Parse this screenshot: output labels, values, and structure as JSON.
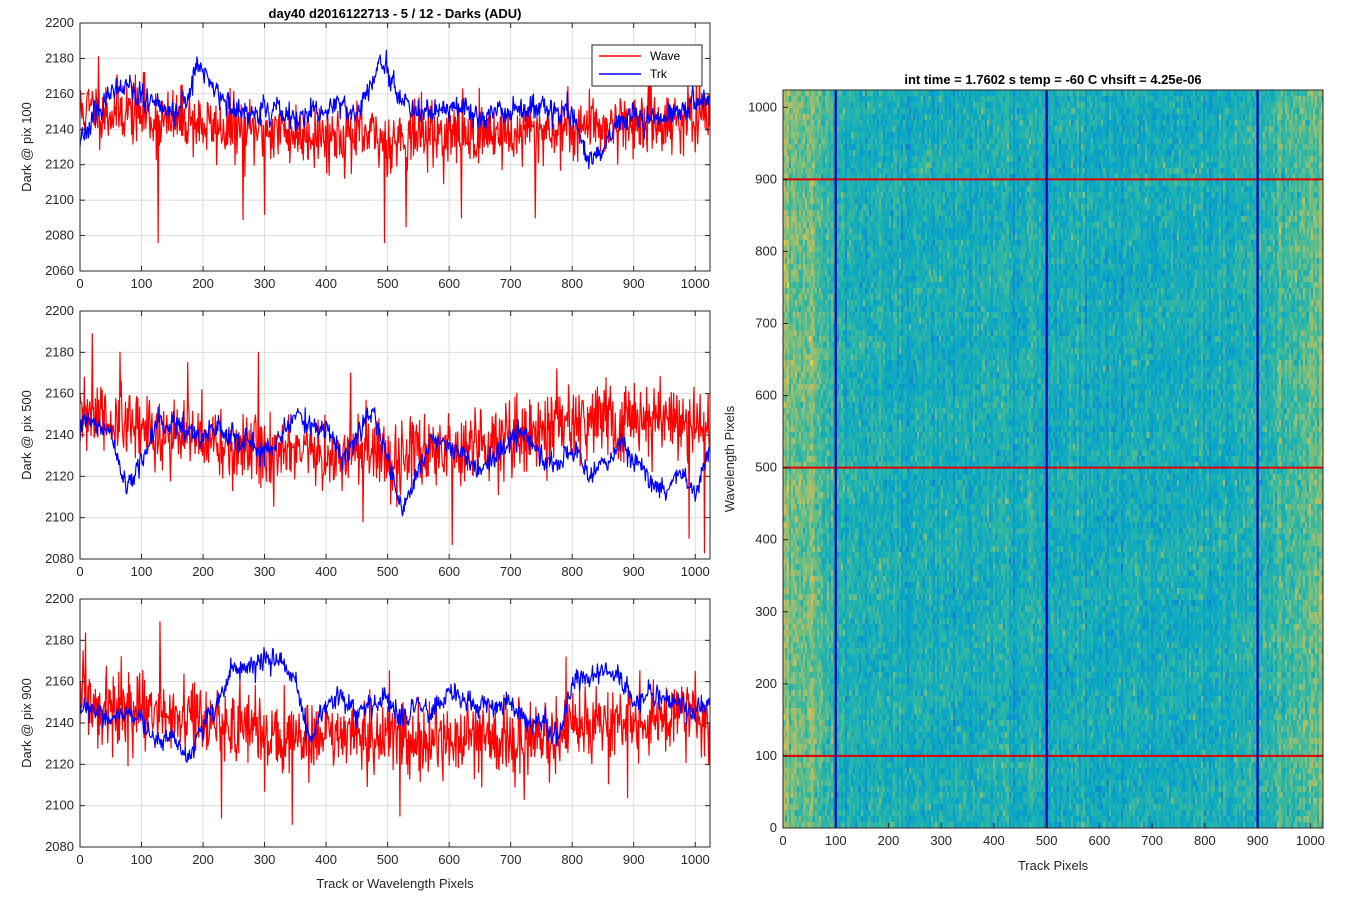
{
  "chart_data": [
    {
      "type": "line",
      "title": "day40 d2016122713 - 5 / 12 - Darks (ADU)",
      "xlabel": "",
      "ylabel": "Dark @ pix 100",
      "xlim": [
        0,
        1024
      ],
      "ylim": [
        2060,
        2200
      ],
      "xticks": [
        0,
        100,
        200,
        300,
        400,
        500,
        600,
        700,
        800,
        900,
        1000
      ],
      "yticks": [
        2060,
        2080,
        2100,
        2120,
        2140,
        2160,
        2180,
        2200
      ],
      "grid": true,
      "legend": {
        "position": "top-right",
        "entries": [
          "Wave",
          "Trk"
        ]
      },
      "series": [
        {
          "name": "Wave",
          "color": "#ff0000",
          "x": [
            0,
            25,
            50,
            75,
            100,
            125,
            150,
            175,
            200,
            225,
            250,
            275,
            300,
            325,
            350,
            375,
            400,
            425,
            450,
            475,
            500,
            525,
            550,
            575,
            600,
            625,
            650,
            675,
            700,
            725,
            750,
            775,
            800,
            825,
            850,
            875,
            900,
            925,
            950,
            975,
            1000,
            1023
          ],
          "values": [
            2150,
            2152,
            2149,
            2151,
            2148,
            2145,
            2144,
            2146,
            2142,
            2140,
            2141,
            2138,
            2140,
            2139,
            2137,
            2138,
            2136,
            2137,
            2135,
            2136,
            2133,
            2136,
            2138,
            2137,
            2136,
            2138,
            2137,
            2139,
            2136,
            2138,
            2140,
            2139,
            2141,
            2143,
            2142,
            2144,
            2143,
            2145,
            2144,
            2146,
            2145,
            2144
          ],
          "noise": 9,
          "samples": 1024,
          "seed": 11,
          "spikes": [
            [
              30,
              2181
            ],
            [
              105,
              2172
            ],
            [
              127,
              2076
            ],
            [
              265,
              2089
            ],
            [
              300,
              2092
            ],
            [
              495,
              2076
            ],
            [
              530,
              2085
            ],
            [
              620,
              2090
            ],
            [
              740,
              2090
            ]
          ]
        },
        {
          "name": "Trk",
          "color": "#0000ff",
          "x": [
            0,
            25,
            50,
            75,
            100,
            125,
            150,
            175,
            190,
            200,
            225,
            250,
            275,
            300,
            325,
            350,
            375,
            400,
            425,
            450,
            475,
            490,
            500,
            525,
            550,
            575,
            600,
            625,
            650,
            675,
            700,
            725,
            750,
            775,
            800,
            825,
            850,
            875,
            900,
            925,
            950,
            975,
            1000,
            1023
          ],
          "values": [
            2135,
            2150,
            2158,
            2162,
            2158,
            2152,
            2150,
            2158,
            2176,
            2172,
            2160,
            2150,
            2148,
            2152,
            2150,
            2145,
            2148,
            2150,
            2152,
            2150,
            2165,
            2180,
            2170,
            2152,
            2148,
            2150,
            2152,
            2150,
            2148,
            2152,
            2150,
            2150,
            2152,
            2148,
            2150,
            2120,
            2130,
            2142,
            2150,
            2146,
            2148,
            2152,
            2156,
            2158
          ],
          "noise": 5,
          "samples": 1024,
          "seed": 23
        }
      ]
    },
    {
      "type": "line",
      "title": "",
      "xlabel": "",
      "ylabel": "Dark @ pix 500",
      "xlim": [
        0,
        1024
      ],
      "ylim": [
        2080,
        2200
      ],
      "xticks": [
        0,
        100,
        200,
        300,
        400,
        500,
        600,
        700,
        800,
        900,
        1000
      ],
      "yticks": [
        2080,
        2100,
        2120,
        2140,
        2160,
        2180,
        2200
      ],
      "grid": true,
      "series": [
        {
          "name": "Wave",
          "color": "#ff0000",
          "x": [
            0,
            25,
            50,
            75,
            100,
            125,
            150,
            175,
            200,
            225,
            250,
            275,
            300,
            325,
            350,
            375,
            400,
            425,
            450,
            475,
            500,
            525,
            550,
            575,
            600,
            625,
            650,
            675,
            700,
            725,
            750,
            775,
            800,
            825,
            850,
            875,
            900,
            925,
            950,
            975,
            1000,
            1023
          ],
          "values": [
            2148,
            2150,
            2146,
            2143,
            2144,
            2141,
            2140,
            2139,
            2137,
            2136,
            2133,
            2132,
            2131,
            2132,
            2130,
            2131,
            2129,
            2132,
            2131,
            2130,
            2128,
            2129,
            2131,
            2132,
            2134,
            2136,
            2138,
            2138,
            2140,
            2141,
            2143,
            2144,
            2145,
            2146,
            2147,
            2148,
            2148,
            2147,
            2149,
            2148,
            2146,
            2140
          ],
          "noise": 9,
          "samples": 1024,
          "seed": 31,
          "spikes": [
            [
              20,
              2189
            ],
            [
              65,
              2180
            ],
            [
              175,
              2175
            ],
            [
              290,
              2180
            ],
            [
              440,
              2170
            ],
            [
              460,
              2098
            ],
            [
              605,
              2087
            ],
            [
              775,
              2172
            ],
            [
              990,
              2090
            ],
            [
              1015,
              2083
            ]
          ]
        },
        {
          "name": "Trk",
          "color": "#0000ff",
          "x": [
            0,
            25,
            50,
            75,
            100,
            125,
            150,
            175,
            200,
            225,
            250,
            275,
            300,
            325,
            350,
            375,
            400,
            425,
            450,
            475,
            500,
            525,
            550,
            575,
            600,
            625,
            650,
            675,
            700,
            725,
            750,
            775,
            800,
            825,
            850,
            875,
            900,
            925,
            950,
            975,
            1000,
            1023
          ],
          "values": [
            2145,
            2145,
            2140,
            2115,
            2128,
            2145,
            2146,
            2142,
            2140,
            2142,
            2138,
            2135,
            2130,
            2138,
            2150,
            2145,
            2142,
            2130,
            2138,
            2150,
            2130,
            2100,
            2125,
            2138,
            2135,
            2130,
            2122,
            2130,
            2140,
            2140,
            2130,
            2125,
            2135,
            2120,
            2125,
            2135,
            2130,
            2118,
            2110,
            2122,
            2110,
            2132
          ],
          "noise": 4,
          "samples": 1024,
          "seed": 47
        }
      ]
    },
    {
      "type": "line",
      "title": "",
      "xlabel": "Track or Wavelength Pixels",
      "ylabel": "Dark @ pix 900",
      "xlim": [
        0,
        1024
      ],
      "ylim": [
        2080,
        2200
      ],
      "xticks": [
        0,
        100,
        200,
        300,
        400,
        500,
        600,
        700,
        800,
        900,
        1000
      ],
      "yticks": [
        2080,
        2100,
        2120,
        2140,
        2160,
        2180,
        2200
      ],
      "grid": true,
      "series": [
        {
          "name": "Wave",
          "color": "#ff0000",
          "x": [
            0,
            25,
            50,
            75,
            100,
            125,
            150,
            175,
            200,
            225,
            250,
            275,
            300,
            325,
            350,
            375,
            400,
            425,
            450,
            475,
            500,
            525,
            550,
            575,
            600,
            625,
            650,
            675,
            700,
            725,
            750,
            775,
            800,
            825,
            850,
            875,
            900,
            925,
            950,
            975,
            1000,
            1023
          ],
          "values": [
            2150,
            2148,
            2147,
            2145,
            2146,
            2144,
            2143,
            2141,
            2140,
            2138,
            2139,
            2137,
            2135,
            2136,
            2134,
            2133,
            2134,
            2132,
            2133,
            2131,
            2132,
            2133,
            2131,
            2132,
            2130,
            2131,
            2133,
            2132,
            2131,
            2133,
            2134,
            2135,
            2137,
            2138,
            2140,
            2141,
            2142,
            2143,
            2144,
            2145,
            2144,
            2138
          ],
          "noise": 9,
          "samples": 1024,
          "seed": 59,
          "spikes": [
            [
              5,
              2175
            ],
            [
              130,
              2189
            ],
            [
              230,
              2094
            ],
            [
              300,
              2107
            ],
            [
              345,
              2091
            ],
            [
              520,
              2095
            ],
            [
              790,
              2172
            ],
            [
              890,
              2104
            ],
            [
              1000,
              2165
            ]
          ]
        },
        {
          "name": "Trk",
          "color": "#0000ff",
          "x": [
            0,
            25,
            50,
            75,
            100,
            125,
            150,
            175,
            200,
            225,
            250,
            275,
            300,
            325,
            350,
            375,
            400,
            425,
            450,
            475,
            500,
            525,
            550,
            575,
            600,
            625,
            650,
            675,
            700,
            725,
            750,
            775,
            800,
            825,
            850,
            875,
            900,
            925,
            950,
            975,
            1000,
            1023
          ],
          "values": [
            2150,
            2146,
            2140,
            2145,
            2142,
            2130,
            2135,
            2122,
            2140,
            2150,
            2168,
            2165,
            2172,
            2170,
            2158,
            2130,
            2150,
            2152,
            2145,
            2148,
            2152,
            2140,
            2150,
            2145,
            2155,
            2150,
            2150,
            2148,
            2150,
            2140,
            2140,
            2132,
            2158,
            2162,
            2165,
            2162,
            2150,
            2155,
            2152,
            2150,
            2145,
            2150
          ],
          "noise": 4,
          "samples": 1024,
          "seed": 71
        }
      ]
    },
    {
      "type": "heatmap",
      "title": "int time = 1.7602 s    temp = -60 C    vhsift = 4.25e-06",
      "xlabel": "Track Pixels",
      "ylabel": "Wavelength Pixels",
      "xlim": [
        0,
        1024
      ],
      "ylim": [
        0,
        1024
      ],
      "xticks": [
        0,
        100,
        200,
        300,
        400,
        500,
        600,
        700,
        800,
        900,
        1000
      ],
      "yticks": [
        0,
        100,
        200,
        300,
        400,
        500,
        600,
        700,
        800,
        900,
        1000
      ],
      "colormap": "parula",
      "vertical_lines": {
        "x": [
          100,
          500,
          900
        ],
        "color": "#0000b4"
      },
      "horizontal_lines": {
        "y": [
          100,
          500,
          900
        ],
        "color": "#e00000"
      }
    }
  ]
}
